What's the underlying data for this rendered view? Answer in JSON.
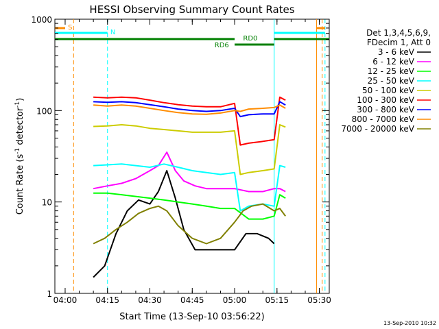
{
  "chart_data": {
    "type": "line",
    "title": "HESSI Observing Summary Count Rates",
    "xlabel": "Start Time (13-Sep-10 03:56:22)",
    "ylabel_main": "Count Rate (s",
    "ylabel_sup1": "-1",
    "ylabel_mid": " detector",
    "ylabel_sup2": "-1",
    "ylabel_end": ")",
    "stamp": "13-Sep-2010 10:32",
    "y_scale": "log",
    "xlim": [
      "03:56:22",
      "05:33:30"
    ],
    "ylim": [
      1,
      1000
    ],
    "x_ticks": [
      "04:00",
      "04:15",
      "04:30",
      "04:45",
      "05:00",
      "05:15",
      "05:30"
    ],
    "y_ticks": [
      "1",
      "10",
      "100",
      "1000"
    ],
    "legend_header": [
      "Det 1,3,4,5,6,9,",
      "FDecim 1, Att 0"
    ],
    "legend_position": "right",
    "series": [
      {
        "name": "3 - 6 keV",
        "color": "#000000",
        "x": [
          "04:10",
          "04:14",
          "04:18",
          "04:22",
          "04:26",
          "04:30",
          "04:33",
          "04:36",
          "04:39",
          "04:42",
          "04:46",
          "04:50",
          "04:55",
          "05:00",
          "05:04",
          "05:08",
          "05:12",
          "05:14"
        ],
        "y": [
          1.5,
          2.0,
          4.5,
          8.0,
          10.5,
          9.5,
          13.0,
          22.0,
          11.0,
          5.0,
          3.0,
          3.0,
          3.0,
          3.0,
          4.5,
          4.5,
          4.0,
          3.5
        ]
      },
      {
        "name": "6 - 12 keV",
        "color": "#ff00ff",
        "x": [
          "04:10",
          "04:15",
          "04:20",
          "04:25",
          "04:30",
          "04:33",
          "04:36",
          "04:39",
          "04:42",
          "04:46",
          "04:50",
          "04:55",
          "05:00",
          "05:05",
          "05:10",
          "05:14",
          "05:16",
          "05:18"
        ],
        "y": [
          14,
          15,
          16,
          18,
          22,
          25,
          35,
          22,
          17,
          15,
          14,
          14,
          14,
          13,
          13,
          14,
          14,
          13
        ]
      },
      {
        "name": "12 - 25 keV",
        "color": "#00ff00",
        "x": [
          "04:10",
          "04:15",
          "04:20",
          "04:25",
          "04:30",
          "04:35",
          "04:40",
          "04:45",
          "04:50",
          "04:55",
          "05:00",
          "05:05",
          "05:10",
          "05:14",
          "05:16",
          "05:18"
        ],
        "y": [
          12.5,
          12.5,
          12,
          11.5,
          11,
          10.5,
          10,
          9.5,
          9,
          8.5,
          8.5,
          6.5,
          6.5,
          7,
          12,
          11
        ]
      },
      {
        "name": "25 - 50 keV",
        "color": "#00ffff",
        "x": [
          "04:10",
          "04:15",
          "04:20",
          "04:25",
          "04:30",
          "04:35",
          "04:40",
          "04:45",
          "04:50",
          "04:55",
          "05:00",
          "05:02",
          "05:05",
          "05:10",
          "05:14",
          "05:16",
          "05:18"
        ],
        "y": [
          25,
          25.5,
          26,
          25,
          24,
          26,
          24,
          22,
          21,
          20,
          21,
          8,
          9,
          9.5,
          9,
          25,
          24
        ]
      },
      {
        "name": "50 - 100 keV",
        "color": "#cccc00",
        "x": [
          "04:10",
          "04:15",
          "04:20",
          "04:25",
          "04:30",
          "04:35",
          "04:40",
          "04:45",
          "04:50",
          "04:55",
          "05:00",
          "05:02",
          "05:05",
          "05:10",
          "05:14",
          "05:16",
          "05:18"
        ],
        "y": [
          67,
          68,
          70,
          68,
          64,
          62,
          60,
          58,
          58,
          58,
          60,
          20,
          21,
          22,
          23,
          70,
          66
        ]
      },
      {
        "name": "100 - 300 keV",
        "color": "#ff0000",
        "x": [
          "04:10",
          "04:15",
          "04:20",
          "04:25",
          "04:30",
          "04:35",
          "04:40",
          "04:45",
          "04:50",
          "04:55",
          "05:00",
          "05:02",
          "05:05",
          "05:10",
          "05:14",
          "05:16",
          "05:18"
        ],
        "y": [
          140,
          138,
          140,
          138,
          130,
          122,
          116,
          112,
          110,
          110,
          120,
          42,
          44,
          46,
          48,
          140,
          130
        ]
      },
      {
        "name": "300 - 800 keV",
        "color": "#0000ff",
        "x": [
          "04:10",
          "04:15",
          "04:20",
          "04:25",
          "04:30",
          "04:35",
          "04:40",
          "04:45",
          "04:50",
          "04:55",
          "05:00",
          "05:02",
          "05:05",
          "05:10",
          "05:14",
          "05:16",
          "05:18"
        ],
        "y": [
          125,
          123,
          125,
          122,
          116,
          110,
          104,
          100,
          98,
          100,
          106,
          86,
          90,
          92,
          92,
          125,
          115
        ]
      },
      {
        "name": "800 - 7000 keV",
        "color": "#ff8c00",
        "x": [
          "04:10",
          "04:15",
          "04:20",
          "04:25",
          "04:30",
          "04:35",
          "04:40",
          "04:45",
          "04:50",
          "04:55",
          "05:00",
          "05:02",
          "05:05",
          "05:10",
          "05:14",
          "05:16",
          "05:18"
        ],
        "y": [
          115,
          112,
          115,
          112,
          106,
          100,
          95,
          92,
          91,
          94,
          100,
          98,
          104,
          106,
          108,
          115,
          106
        ]
      },
      {
        "name": "7000 - 20000 keV",
        "color": "#808000",
        "x": [
          "04:10",
          "04:14",
          "04:18",
          "04:22",
          "04:26",
          "04:30",
          "04:33",
          "04:36",
          "04:40",
          "04:45",
          "04:50",
          "04:55",
          "05:00",
          "05:03",
          "05:06",
          "05:10",
          "05:14",
          "05:16",
          "05:18"
        ],
        "y": [
          3.5,
          4.0,
          5.0,
          6.0,
          7.5,
          8.5,
          9.0,
          8.0,
          5.5,
          4.0,
          3.5,
          4.0,
          6.0,
          8.0,
          9.0,
          9.5,
          8.0,
          8.5,
          7.0
        ]
      }
    ],
    "annotations": [
      {
        "label": "S",
        "color": "#ff8c00"
      },
      {
        "label": "N",
        "color": "#00ffff"
      },
      {
        "label": "RD0",
        "color": "#008000"
      },
      {
        "label": "RD6",
        "color": "#008000"
      }
    ],
    "markers": {
      "orange_dashed": [
        "04:03",
        "05:31"
      ],
      "orange_solid": [
        "05:29"
      ],
      "cyan_dashed": [
        "04:15",
        "05:32"
      ],
      "cyan_solid": [
        "05:14"
      ]
    },
    "flag_bars": {
      "S": {
        "color": "#ff8c00",
        "spans": [
          [
            "03:56:22",
            "04:00"
          ],
          [
            "05:29",
            "05:32"
          ]
        ]
      },
      "N": {
        "color": "#00ffff",
        "spans": [
          [
            "03:56:22",
            "04:15"
          ],
          [
            "05:14",
            "05:32"
          ]
        ]
      },
      "RD0": {
        "color": "#008000",
        "spans": [
          [
            "03:56:22",
            "05:00"
          ],
          [
            "05:14",
            "05:33:30"
          ]
        ]
      },
      "RD6": {
        "color": "#008000",
        "spans": [
          [
            "05:00",
            "05:14"
          ]
        ]
      }
    }
  }
}
